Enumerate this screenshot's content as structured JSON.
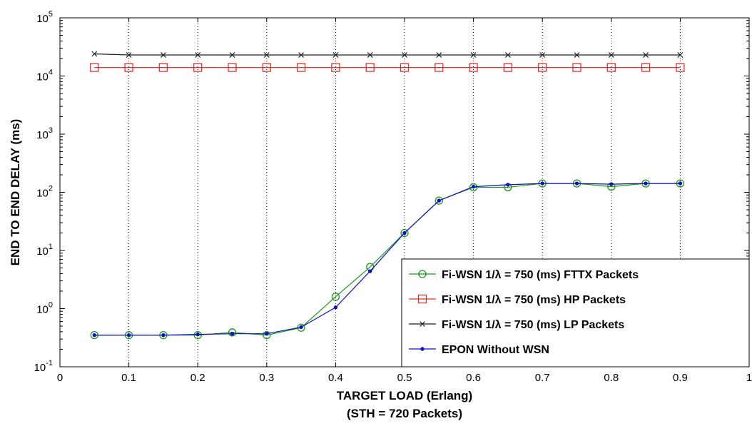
{
  "chart_data": {
    "type": "line",
    "title": "",
    "xlabel": "TARGET LOAD (Erlang)",
    "xlabel2": "(STH = 720 Packets)",
    "ylabel": "END TO END DELAY (ms)",
    "xlim": [
      0,
      1
    ],
    "ylim": [
      0.1,
      100000
    ],
    "yscale": "log",
    "xticks": [
      "0",
      "0.1",
      "0.2",
      "0.3",
      "0.4",
      "0.5",
      "0.6",
      "0.7",
      "0.8",
      "0.9",
      "1"
    ],
    "yticks": [
      {
        "base": "10",
        "exp": "-1"
      },
      {
        "base": "10",
        "exp": "0"
      },
      {
        "base": "10",
        "exp": "1"
      },
      {
        "base": "10",
        "exp": "2"
      },
      {
        "base": "10",
        "exp": "3"
      },
      {
        "base": "10",
        "exp": "4"
      },
      {
        "base": "10",
        "exp": "5"
      }
    ],
    "grid": "vertical dotted",
    "legend_position": "bottom-right",
    "x": [
      0.05,
      0.1,
      0.15,
      0.2,
      0.25,
      0.3,
      0.35,
      0.4,
      0.45,
      0.5,
      0.55,
      0.6,
      0.65,
      0.7,
      0.75,
      0.8,
      0.85,
      0.9
    ],
    "series": [
      {
        "name": "Fi-WSN 1/λ = 750 (ms) FTTX Packets",
        "color": "#1a9a1a",
        "marker": "circle",
        "values": [
          0.35,
          0.35,
          0.35,
          0.35,
          0.39,
          0.35,
          0.47,
          1.6,
          5.2,
          20,
          72,
          122,
          122,
          142,
          142,
          125,
          142,
          142
        ]
      },
      {
        "name": "Fi-WSN 1/λ = 750 (ms) HP Packets",
        "color": "#dd3333",
        "marker": "square",
        "values": [
          14000,
          14000,
          14000,
          14000,
          14000,
          14000,
          14000,
          14000,
          14000,
          14000,
          14000,
          14000,
          14000,
          14000,
          14000,
          14000,
          14000,
          14000
        ]
      },
      {
        "name": "Fi-WSN 1/λ = 750 (ms) LP Packets",
        "color": "#222222",
        "marker": "x",
        "values": [
          24000,
          23000,
          23000,
          23000,
          23000,
          23000,
          23000,
          23000,
          23000,
          23000,
          23000,
          23000,
          23000,
          23000,
          23000,
          23000,
          23000,
          23000
        ]
      },
      {
        "name": "EPON Without WSN",
        "color": "#1010c0",
        "marker": "dot",
        "values": [
          0.35,
          0.35,
          0.35,
          0.36,
          0.37,
          0.37,
          0.48,
          1.05,
          4.4,
          20,
          72,
          125,
          135,
          142,
          142,
          138,
          142,
          142
        ]
      }
    ]
  }
}
